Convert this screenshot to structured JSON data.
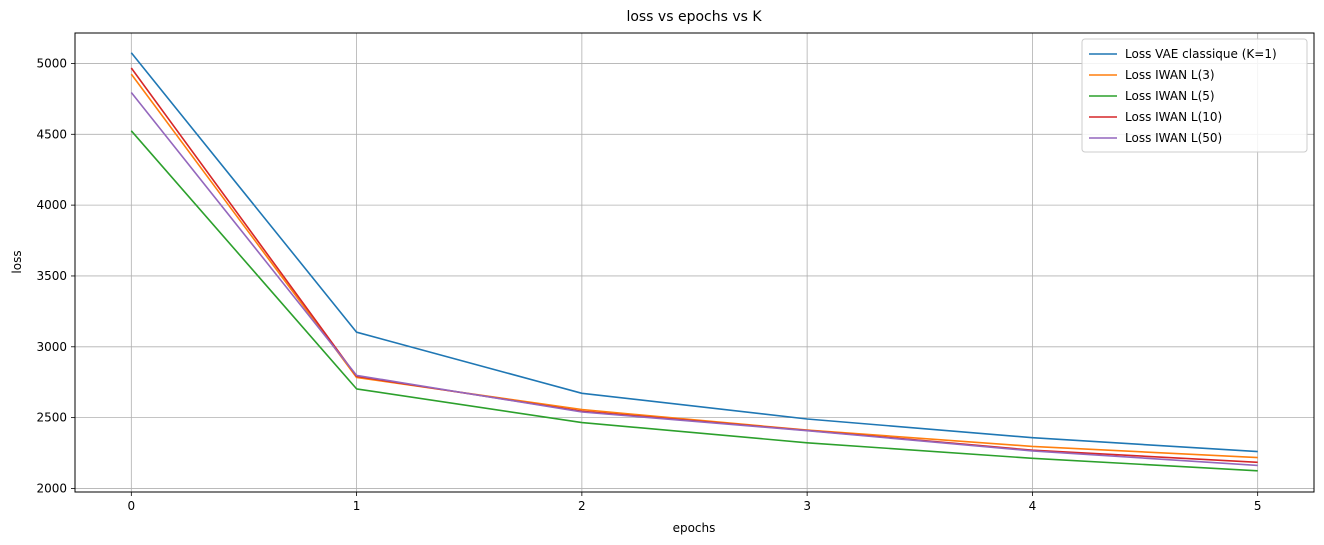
{
  "chart_data": {
    "type": "line",
    "title": "loss vs epochs vs K",
    "xlabel": "epochs",
    "ylabel": "loss",
    "x": [
      0,
      1,
      2,
      3,
      4,
      5
    ],
    "xlim": [
      -0.25,
      5.25
    ],
    "ylim": [
      1975,
      5215
    ],
    "xticks": [
      "0",
      "1",
      "2",
      "3",
      "4",
      "5"
    ],
    "yticks": [
      "2000",
      "2500",
      "3000",
      "3500",
      "4000",
      "4500",
      "5000"
    ],
    "grid": true,
    "legend_position": "top-right",
    "series": [
      {
        "name": "Loss VAE classique (K=1)",
        "color": "#1f77b4",
        "values": [
          5075,
          3103,
          2672,
          2490,
          2358,
          2260
        ]
      },
      {
        "name": "Loss IWAN L(3)",
        "color": "#ff7f0e",
        "values": [
          4925,
          2783,
          2557,
          2412,
          2297,
          2218
        ]
      },
      {
        "name": "Loss IWAN L(5)",
        "color": "#2ca02c",
        "values": [
          4525,
          2703,
          2465,
          2322,
          2213,
          2125
        ]
      },
      {
        "name": "Loss IWAN L(10)",
        "color": "#d62728",
        "values": [
          4968,
          2792,
          2545,
          2410,
          2270,
          2185
        ]
      },
      {
        "name": "Loss IWAN L(50)",
        "color": "#9467bd",
        "values": [
          4795,
          2798,
          2540,
          2408,
          2265,
          2163
        ]
      }
    ]
  }
}
